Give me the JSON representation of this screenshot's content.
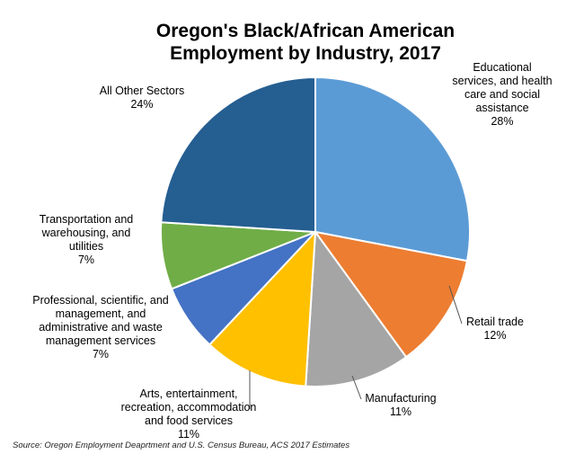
{
  "chart_data": {
    "type": "pie",
    "title_lines": [
      "Oregon's Black/African American",
      "Employment by Industry, 2017"
    ],
    "start_angle_deg": 0,
    "slices": [
      {
        "label_lines": [
          "Educational",
          "services, and health",
          "care and social",
          "assistance"
        ],
        "pct_label": "28%",
        "value": 28,
        "color": "#5b9bd5"
      },
      {
        "label_lines": [
          "Retail trade"
        ],
        "pct_label": "12%",
        "value": 12,
        "color": "#ed7d31"
      },
      {
        "label_lines": [
          "Manufacturing"
        ],
        "pct_label": "11%",
        "value": 11,
        "color": "#a5a5a5"
      },
      {
        "label_lines": [
          "Arts, entertainment,",
          "recreation,  accommodation",
          "and food services"
        ],
        "pct_label": "11%",
        "value": 11,
        "color": "#ffc000"
      },
      {
        "label_lines": [
          "Professional, scientific, and",
          "management, and",
          "administrative and waste",
          "management services"
        ],
        "pct_label": "7%",
        "value": 7,
        "color": "#4472c4"
      },
      {
        "label_lines": [
          "Transportation and",
          "warehousing, and",
          "utilities"
        ],
        "pct_label": "7%",
        "value": 7,
        "color": "#70ad47"
      },
      {
        "label_lines": [
          "All Other Sectors"
        ],
        "pct_label": "24%",
        "value": 24,
        "color": "#255e91"
      }
    ],
    "source": "Source: Oregon Employment Deaprtment and U.S. Census Bureau, ACS 2017 Estimates"
  }
}
